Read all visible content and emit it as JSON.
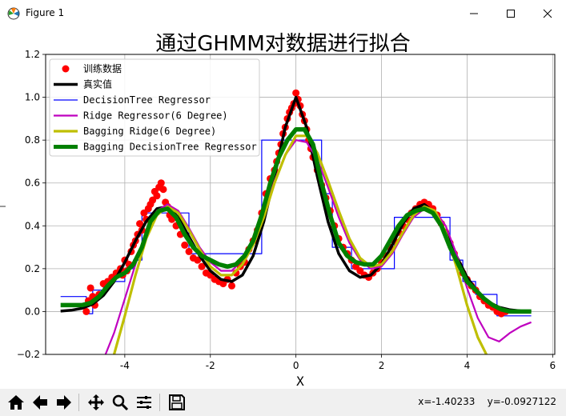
{
  "window": {
    "title": "Figure 1",
    "app_icon": "matplotlib-icon",
    "controls": [
      "minimize-icon",
      "maximize-icon",
      "close-icon"
    ]
  },
  "toolbar": {
    "buttons": [
      "home-icon",
      "back-arrow-icon",
      "forward-arrow-icon",
      "pan-icon",
      "zoom-icon",
      "subplots-icon",
      "save-icon"
    ],
    "coords": "x=-1.40233    y=-0.0927122"
  },
  "chart_data": {
    "type": "line",
    "title": "通过GHMM对数据进行拟合",
    "xlabel": "X",
    "ylabel": "",
    "xlim": [
      -5.85,
      6.05
    ],
    "ylim": [
      -0.2,
      1.2
    ],
    "xticks": [
      "-4",
      "-2",
      "0",
      "2",
      "4",
      "6"
    ],
    "yticks": [
      "−0.2",
      "0.0",
      "0.2",
      "0.4",
      "0.6",
      "0.8",
      "1.0",
      "1.2"
    ],
    "grid": true,
    "legend": {
      "position": "top-left",
      "entries": [
        "训练数据",
        "真实值",
        "DecisionTree Regressor",
        "Ridge Regressor(6 Degree)",
        "Bagging Ridge(6 Degree)",
        "Bagging DecisionTree Regressor"
      ]
    },
    "colors": {
      "points": "#ff0000",
      "true": "#000000",
      "tree": "#0000ff",
      "ridge": "#bf00bf",
      "bagging_ridge": "#bfbf00",
      "bagging_tree": "#008000"
    },
    "series": [
      {
        "name": "训练数据",
        "style": "points",
        "x": [
          -4.9,
          -4.85,
          -4.8,
          -4.75,
          -4.7,
          -4.6,
          -4.5,
          -4.4,
          -4.3,
          -4.2,
          -4.1,
          -4.05,
          -4.0,
          -3.95,
          -3.9,
          -3.85,
          -3.8,
          -3.75,
          -3.7,
          -3.65,
          -3.6,
          -3.55,
          -3.5,
          -3.45,
          -3.4,
          -3.35,
          -3.3,
          -3.25,
          -3.2,
          -3.15,
          -3.1,
          -3.05,
          -3.0,
          -2.95,
          -2.9,
          -2.8,
          -2.7,
          -2.6,
          -2.5,
          -2.4,
          -2.3,
          -2.2,
          -2.1,
          -2.0,
          -1.9,
          -1.8,
          -1.7,
          -1.6,
          -1.5,
          -1.4,
          -1.3,
          -1.2,
          -1.1,
          -1.0,
          -0.9,
          -0.8,
          -0.7,
          -0.6,
          -0.5,
          -0.45,
          -0.4,
          -0.35,
          -0.3,
          -0.25,
          -0.2,
          -0.15,
          -0.1,
          -0.05,
          0.0,
          0.05,
          0.1,
          0.15,
          0.2,
          0.25,
          0.3,
          0.35,
          0.4,
          0.5,
          0.6,
          0.7,
          0.8,
          0.9,
          1.0,
          1.1,
          1.2,
          1.3,
          1.4,
          1.5,
          1.6,
          1.7,
          1.8,
          1.9,
          2.0,
          2.1,
          2.2,
          2.3,
          2.4,
          2.5,
          2.6,
          2.7,
          2.8,
          2.9,
          3.0,
          3.1,
          3.2,
          3.3,
          3.4,
          3.5,
          3.6,
          3.7,
          3.8,
          3.9,
          4.0,
          4.1,
          4.2,
          4.3,
          4.4,
          4.5,
          4.6,
          4.7,
          4.8,
          4.9
        ],
        "y": [
          0.0,
          0.05,
          0.11,
          0.07,
          0.03,
          0.08,
          0.13,
          0.14,
          0.16,
          0.18,
          0.2,
          0.17,
          0.24,
          0.19,
          0.22,
          0.28,
          0.31,
          0.33,
          0.36,
          0.41,
          0.38,
          0.46,
          0.43,
          0.48,
          0.5,
          0.52,
          0.56,
          0.54,
          0.58,
          0.6,
          0.57,
          0.51,
          0.49,
          0.45,
          0.43,
          0.4,
          0.36,
          0.31,
          0.28,
          0.25,
          0.24,
          0.21,
          0.18,
          0.17,
          0.15,
          0.14,
          0.13,
          0.15,
          0.12,
          0.18,
          0.21,
          0.23,
          0.29,
          0.33,
          0.38,
          0.46,
          0.55,
          0.62,
          0.66,
          0.7,
          0.74,
          0.78,
          0.83,
          0.86,
          0.9,
          0.93,
          0.95,
          0.97,
          1.02,
          0.99,
          0.96,
          0.92,
          0.89,
          0.85,
          0.8,
          0.76,
          0.72,
          0.66,
          0.59,
          0.53,
          0.47,
          0.4,
          0.34,
          0.3,
          0.27,
          0.24,
          0.21,
          0.19,
          0.17,
          0.16,
          0.18,
          0.2,
          0.23,
          0.26,
          0.3,
          0.33,
          0.37,
          0.4,
          0.43,
          0.46,
          0.48,
          0.5,
          0.51,
          0.5,
          0.48,
          0.45,
          0.41,
          0.37,
          0.32,
          0.27,
          0.22,
          0.18,
          0.15,
          0.12,
          0.1,
          0.07,
          0.05,
          0.03,
          0.02,
          0.0,
          -0.01,
          0.0
        ]
      },
      {
        "name": "真实值",
        "style": "line",
        "x": [
          -5.5,
          -5.25,
          -5.0,
          -4.75,
          -4.5,
          -4.25,
          -4.0,
          -3.75,
          -3.5,
          -3.25,
          -3.0,
          -2.75,
          -2.5,
          -2.25,
          -2.0,
          -1.75,
          -1.5,
          -1.25,
          -1.0,
          -0.75,
          -0.5,
          -0.25,
          0.0,
          0.25,
          0.5,
          0.75,
          1.0,
          1.25,
          1.5,
          1.75,
          2.0,
          2.25,
          2.5,
          2.75,
          3.0,
          3.25,
          3.5,
          3.75,
          4.0,
          4.25,
          4.5,
          4.75,
          5.0,
          5.25,
          5.5
        ],
        "y": [
          0.002,
          0.006,
          0.015,
          0.035,
          0.075,
          0.14,
          0.23,
          0.33,
          0.42,
          0.48,
          0.49,
          0.44,
          0.35,
          0.26,
          0.19,
          0.15,
          0.14,
          0.17,
          0.26,
          0.42,
          0.63,
          0.86,
          1.0,
          0.86,
          0.63,
          0.42,
          0.27,
          0.19,
          0.16,
          0.17,
          0.22,
          0.31,
          0.41,
          0.48,
          0.5,
          0.46,
          0.37,
          0.26,
          0.16,
          0.09,
          0.045,
          0.02,
          0.008,
          0.003,
          0.001
        ]
      },
      {
        "name": "DecisionTree Regressor",
        "style": "step",
        "x": [
          -5.5,
          -4.9,
          -4.9,
          -4.75,
          -4.75,
          -4.5,
          -4.5,
          -4.0,
          -4.0,
          -3.8,
          -3.8,
          -3.6,
          -3.6,
          -3.0,
          -3.0,
          -2.5,
          -2.5,
          -1.8,
          -1.8,
          -0.8,
          -0.8,
          0.6,
          0.6,
          0.85,
          0.85,
          1.3,
          1.3,
          2.3,
          2.3,
          3.6,
          3.6,
          3.9,
          3.9,
          4.2,
          4.2,
          4.7,
          4.7,
          5.5
        ],
        "y": [
          0.07,
          0.07,
          -0.01,
          -0.01,
          0.1,
          0.1,
          0.14,
          0.14,
          0.2,
          0.2,
          0.24,
          0.24,
          0.46,
          0.46,
          0.46,
          0.46,
          0.27,
          0.27,
          0.27,
          0.27,
          0.8,
          0.8,
          0.55,
          0.55,
          0.3,
          0.3,
          0.2,
          0.2,
          0.44,
          0.44,
          0.24,
          0.24,
          0.14,
          0.14,
          0.08,
          0.08,
          -0.02,
          -0.02
        ]
      },
      {
        "name": "Ridge Regressor(6 Degree)",
        "style": "line",
        "x": [
          -4.45,
          -4.25,
          -4.0,
          -3.75,
          -3.5,
          -3.25,
          -3.0,
          -2.75,
          -2.5,
          -2.25,
          -2.0,
          -1.75,
          -1.5,
          -1.25,
          -1.0,
          -0.75,
          -0.5,
          -0.25,
          0.0,
          0.25,
          0.5,
          0.75,
          1.0,
          1.25,
          1.5,
          1.75,
          2.0,
          2.25,
          2.5,
          2.75,
          3.0,
          3.25,
          3.5,
          3.75,
          4.0,
          4.25,
          4.5,
          4.75,
          5.0,
          5.25,
          5.5
        ],
        "y": [
          -0.2,
          -0.1,
          0.06,
          0.22,
          0.38,
          0.47,
          0.5,
          0.47,
          0.39,
          0.3,
          0.23,
          0.19,
          0.19,
          0.24,
          0.33,
          0.46,
          0.61,
          0.73,
          0.8,
          0.79,
          0.71,
          0.58,
          0.44,
          0.32,
          0.24,
          0.2,
          0.21,
          0.27,
          0.36,
          0.44,
          0.48,
          0.47,
          0.4,
          0.27,
          0.11,
          -0.03,
          -0.12,
          -0.14,
          -0.1,
          -0.07,
          -0.05
        ]
      },
      {
        "name": "Bagging Ridge(6 Degree)",
        "style": "line",
        "x": [
          -4.25,
          -4.0,
          -3.75,
          -3.5,
          -3.25,
          -3.0,
          -2.75,
          -2.5,
          -2.25,
          -2.0,
          -1.75,
          -1.5,
          -1.25,
          -1.0,
          -0.75,
          -0.5,
          -0.25,
          0.0,
          0.25,
          0.5,
          0.75,
          1.0,
          1.25,
          1.5,
          1.75,
          2.0,
          2.25,
          2.5,
          2.75,
          3.0,
          3.25,
          3.5,
          3.75,
          4.0,
          4.25,
          4.45
        ],
        "y": [
          -0.2,
          -0.02,
          0.17,
          0.34,
          0.45,
          0.49,
          0.46,
          0.38,
          0.29,
          0.21,
          0.17,
          0.17,
          0.22,
          0.31,
          0.44,
          0.6,
          0.73,
          0.82,
          0.82,
          0.74,
          0.61,
          0.47,
          0.34,
          0.25,
          0.21,
          0.22,
          0.28,
          0.37,
          0.45,
          0.49,
          0.47,
          0.37,
          0.21,
          0.03,
          -0.12,
          -0.2
        ]
      },
      {
        "name": "Bagging DecisionTree Regressor",
        "style": "line",
        "x": [
          -5.5,
          -5.0,
          -4.8,
          -4.6,
          -4.4,
          -4.2,
          -4.0,
          -3.8,
          -3.6,
          -3.4,
          -3.2,
          -3.0,
          -2.8,
          -2.6,
          -2.4,
          -2.2,
          -2.0,
          -1.8,
          -1.6,
          -1.4,
          -1.2,
          -1.0,
          -0.8,
          -0.6,
          -0.4,
          -0.2,
          0.0,
          0.2,
          0.4,
          0.6,
          0.8,
          1.0,
          1.2,
          1.4,
          1.6,
          1.8,
          2.0,
          2.2,
          2.4,
          2.6,
          2.8,
          3.0,
          3.2,
          3.4,
          3.6,
          3.8,
          4.0,
          4.2,
          4.4,
          4.6,
          4.8,
          5.0,
          5.5
        ],
        "y": [
          0.03,
          0.03,
          0.04,
          0.07,
          0.12,
          0.16,
          0.18,
          0.22,
          0.3,
          0.42,
          0.47,
          0.48,
          0.44,
          0.36,
          0.3,
          0.26,
          0.24,
          0.22,
          0.21,
          0.22,
          0.26,
          0.33,
          0.45,
          0.6,
          0.72,
          0.8,
          0.85,
          0.85,
          0.78,
          0.6,
          0.45,
          0.32,
          0.26,
          0.23,
          0.22,
          0.22,
          0.26,
          0.33,
          0.4,
          0.45,
          0.47,
          0.48,
          0.46,
          0.4,
          0.3,
          0.22,
          0.14,
          0.1,
          0.06,
          0.03,
          0.01,
          0.0,
          0.0
        ]
      }
    ]
  }
}
